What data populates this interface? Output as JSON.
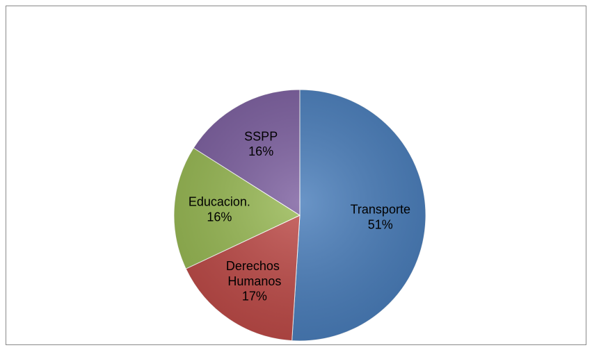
{
  "chart_data": {
    "type": "pie",
    "categories": [
      "Transporte",
      "Derechos Humanos",
      "Educacion.",
      "SSPP"
    ],
    "values": [
      51,
      17,
      16,
      16
    ],
    "value_labels": [
      "51%",
      "17%",
      "16%",
      "16%"
    ],
    "colors": [
      "#4a7ebb",
      "#be4b48",
      "#98b954",
      "#7d60a0"
    ]
  }
}
